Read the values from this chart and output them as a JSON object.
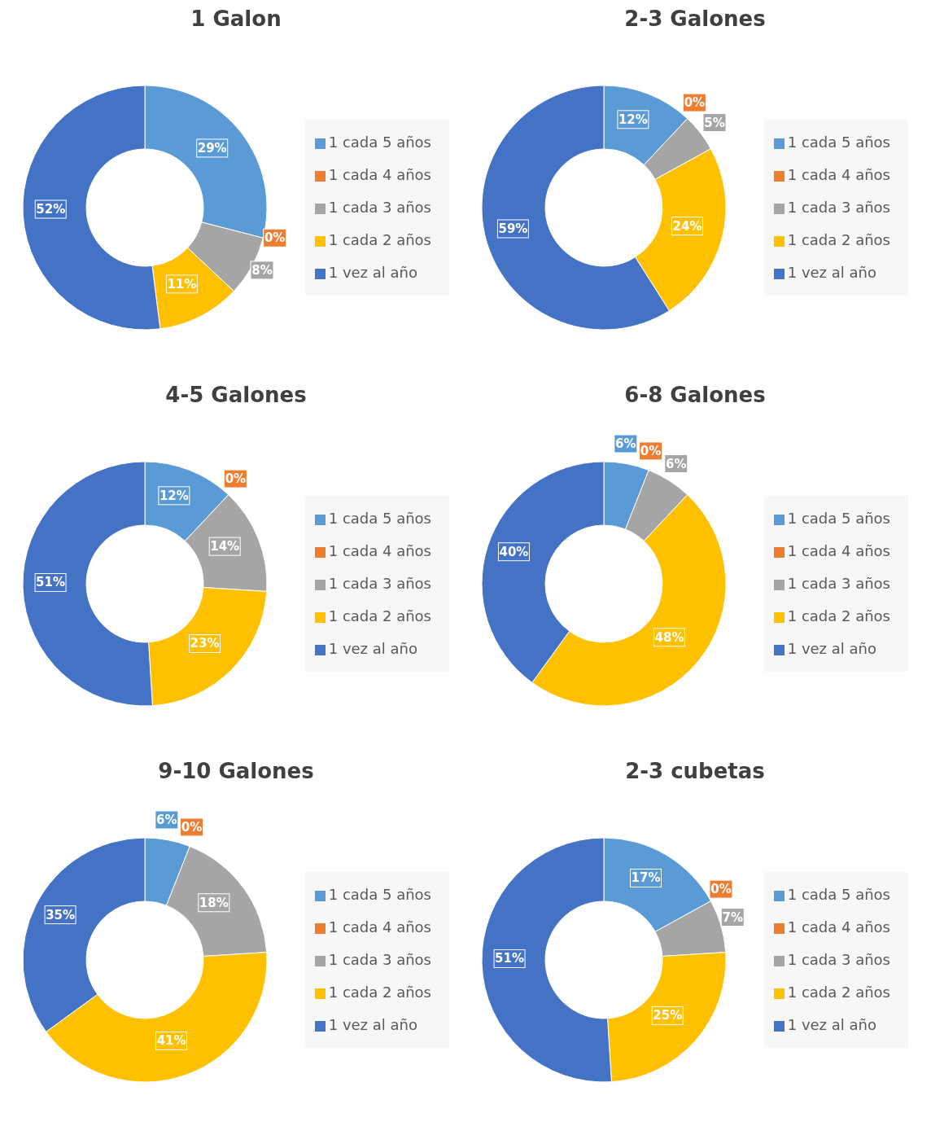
{
  "chart_data": [
    {
      "type": "donut",
      "title": "1 Galon",
      "categories": [
        "1 cada 5 años",
        "1 cada 4 años",
        "1 cada 3 años",
        "1 cada 2 años",
        "1 vez al año"
      ],
      "values": [
        29,
        0,
        8,
        11,
        52
      ],
      "value_labels": [
        "29%",
        "0%",
        "8%",
        "11%",
        "52%"
      ],
      "colors": [
        "#5b9bd5",
        "#ed7d31",
        "#a5a5a5",
        "#ffc000",
        "#4472c4"
      ],
      "legend": "right"
    },
    {
      "type": "donut",
      "title": "2-3 Galones",
      "categories": [
        "1 cada 5 años",
        "1 cada 4 años",
        "1 cada 3 años",
        "1 cada 2 años",
        "1 vez al año"
      ],
      "values": [
        12,
        0,
        5,
        24,
        59
      ],
      "value_labels": [
        "12%",
        "0%",
        "5%",
        "24%",
        "59%"
      ],
      "colors": [
        "#5b9bd5",
        "#ed7d31",
        "#a5a5a5",
        "#ffc000",
        "#4472c4"
      ],
      "legend": "right"
    },
    {
      "type": "donut",
      "title": "4-5 Galones",
      "categories": [
        "1 cada 5 años",
        "1 cada 4 años",
        "1 cada 3 años",
        "1 cada 2 años",
        "1 vez al año"
      ],
      "values": [
        12,
        0,
        14,
        23,
        51
      ],
      "value_labels": [
        "12%",
        "0%",
        "14%",
        "23%",
        "51%"
      ],
      "colors": [
        "#5b9bd5",
        "#ed7d31",
        "#a5a5a5",
        "#ffc000",
        "#4472c4"
      ],
      "legend": "right"
    },
    {
      "type": "donut",
      "title": "6-8 Galones",
      "categories": [
        "1 cada 5 años",
        "1 cada 4 años",
        "1 cada 3 años",
        "1 cada 2 años",
        "1 vez al año"
      ],
      "values": [
        6,
        0,
        6,
        48,
        40
      ],
      "value_labels": [
        "6%",
        "0%",
        "6%",
        "48%",
        "40%"
      ],
      "colors": [
        "#5b9bd5",
        "#ed7d31",
        "#a5a5a5",
        "#ffc000",
        "#4472c4"
      ],
      "legend": "right"
    },
    {
      "type": "donut",
      "title": "9-10 Galones",
      "categories": [
        "1 cada 5 años",
        "1 cada 4 años",
        "1 cada 3 años",
        "1 cada 2 años",
        "1 vez al año"
      ],
      "values": [
        6,
        0,
        18,
        41,
        35
      ],
      "value_labels": [
        "6%",
        "0%",
        "18%",
        "41%",
        "35%"
      ],
      "colors": [
        "#5b9bd5",
        "#ed7d31",
        "#a5a5a5",
        "#ffc000",
        "#4472c4"
      ],
      "legend": "right"
    },
    {
      "type": "donut",
      "title": "2-3 cubetas",
      "categories": [
        "1 cada 5 años",
        "1 cada 4 años",
        "1 cada 3 años",
        "1 cada 2 años",
        "1 vez al año"
      ],
      "values": [
        17,
        0,
        7,
        25,
        51
      ],
      "value_labels": [
        "17%",
        "0%",
        "7%",
        "25%",
        "51%"
      ],
      "colors": [
        "#5b9bd5",
        "#ed7d31",
        "#a5a5a5",
        "#ffc000",
        "#4472c4"
      ],
      "legend": "right"
    }
  ]
}
